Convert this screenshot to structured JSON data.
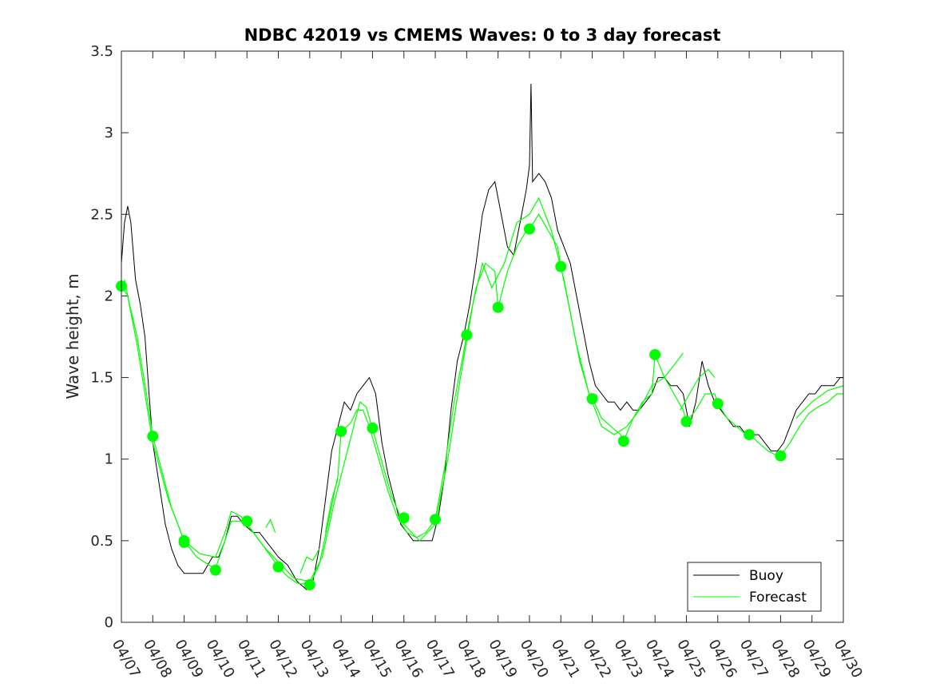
{
  "chart_data": {
    "type": "line",
    "title": "NDBC 42019 vs CMEMS Waves: 0 to 3 day forecast",
    "xlabel": "",
    "ylabel": "Wave height, m",
    "x_ticks": [
      "04/07",
      "04/08",
      "04/09",
      "04/10",
      "04/11",
      "04/12",
      "04/13",
      "04/14",
      "04/15",
      "04/16",
      "04/17",
      "04/18",
      "04/19",
      "04/20",
      "04/21",
      "04/22",
      "04/23",
      "04/24",
      "04/25",
      "04/26",
      "04/27",
      "04/28",
      "04/29",
      "04/30"
    ],
    "y_ticks": [
      "0",
      "0.5",
      "1",
      "1.5",
      "2",
      "2.5",
      "3",
      "3.5"
    ],
    "ylim": [
      0,
      3.5
    ],
    "grid": false,
    "legend_position": "bottom-right",
    "legend": [
      "Buoy",
      "Forecast"
    ],
    "colors": {
      "buoy": "#000000",
      "forecast": "#00ff00"
    },
    "series": [
      {
        "name": "Buoy",
        "color": "#000000",
        "points": [
          [
            0,
            2.2
          ],
          [
            0.1,
            2.45
          ],
          [
            0.2,
            2.55
          ],
          [
            0.3,
            2.45
          ],
          [
            0.45,
            2.1
          ],
          [
            0.6,
            1.95
          ],
          [
            0.75,
            1.75
          ],
          [
            0.9,
            1.35
          ],
          [
            1.0,
            1.1
          ],
          [
            1.2,
            0.85
          ],
          [
            1.4,
            0.6
          ],
          [
            1.6,
            0.45
          ],
          [
            1.8,
            0.35
          ],
          [
            2.0,
            0.3
          ],
          [
            2.3,
            0.3
          ],
          [
            2.6,
            0.3
          ],
          [
            2.9,
            0.4
          ],
          [
            3.1,
            0.4
          ],
          [
            3.3,
            0.5
          ],
          [
            3.5,
            0.65
          ],
          [
            3.7,
            0.65
          ],
          [
            3.9,
            0.6
          ],
          [
            4.2,
            0.55
          ],
          [
            4.4,
            0.55
          ],
          [
            4.6,
            0.5
          ],
          [
            4.8,
            0.45
          ],
          [
            5.0,
            0.4
          ],
          [
            5.3,
            0.35
          ],
          [
            5.6,
            0.25
          ],
          [
            5.9,
            0.2
          ],
          [
            6.1,
            0.25
          ],
          [
            6.3,
            0.45
          ],
          [
            6.5,
            0.75
          ],
          [
            6.7,
            1.05
          ],
          [
            6.9,
            1.2
          ],
          [
            7.1,
            1.35
          ],
          [
            7.3,
            1.3
          ],
          [
            7.5,
            1.4
          ],
          [
            7.7,
            1.45
          ],
          [
            7.9,
            1.5
          ],
          [
            8.1,
            1.4
          ],
          [
            8.3,
            1.1
          ],
          [
            8.5,
            0.9
          ],
          [
            8.7,
            0.75
          ],
          [
            8.9,
            0.6
          ],
          [
            9.1,
            0.55
          ],
          [
            9.3,
            0.5
          ],
          [
            9.6,
            0.5
          ],
          [
            9.9,
            0.5
          ],
          [
            10.1,
            0.65
          ],
          [
            10.3,
            0.9
          ],
          [
            10.5,
            1.3
          ],
          [
            10.7,
            1.6
          ],
          [
            10.9,
            1.75
          ],
          [
            11.1,
            1.95
          ],
          [
            11.3,
            2.2
          ],
          [
            11.5,
            2.5
          ],
          [
            11.7,
            2.65
          ],
          [
            11.9,
            2.7
          ],
          [
            12.1,
            2.5
          ],
          [
            12.3,
            2.3
          ],
          [
            12.5,
            2.25
          ],
          [
            12.7,
            2.45
          ],
          [
            12.9,
            2.65
          ],
          [
            13.0,
            2.8
          ],
          [
            13.05,
            3.3
          ],
          [
            13.1,
            2.7
          ],
          [
            13.3,
            2.75
          ],
          [
            13.5,
            2.7
          ],
          [
            13.7,
            2.6
          ],
          [
            13.9,
            2.4
          ],
          [
            14.1,
            2.3
          ],
          [
            14.3,
            2.2
          ],
          [
            14.5,
            2.0
          ],
          [
            14.7,
            1.8
          ],
          [
            14.9,
            1.6
          ],
          [
            15.1,
            1.45
          ],
          [
            15.3,
            1.4
          ],
          [
            15.5,
            1.35
          ],
          [
            15.7,
            1.35
          ],
          [
            15.9,
            1.3
          ],
          [
            16.1,
            1.35
          ],
          [
            16.3,
            1.3
          ],
          [
            16.5,
            1.3
          ],
          [
            16.7,
            1.35
          ],
          [
            16.9,
            1.4
          ],
          [
            17.1,
            1.5
          ],
          [
            17.3,
            1.5
          ],
          [
            17.5,
            1.45
          ],
          [
            17.7,
            1.45
          ],
          [
            17.9,
            1.4
          ],
          [
            18.1,
            1.2
          ],
          [
            18.3,
            1.35
          ],
          [
            18.5,
            1.6
          ],
          [
            18.7,
            1.45
          ],
          [
            18.9,
            1.35
          ],
          [
            19.1,
            1.3
          ],
          [
            19.3,
            1.25
          ],
          [
            19.5,
            1.2
          ],
          [
            19.7,
            1.2
          ],
          [
            19.9,
            1.15
          ],
          [
            20.1,
            1.15
          ],
          [
            20.3,
            1.15
          ],
          [
            20.5,
            1.1
          ],
          [
            20.7,
            1.05
          ],
          [
            20.9,
            1.05
          ],
          [
            21.1,
            1.1
          ],
          [
            21.3,
            1.2
          ],
          [
            21.5,
            1.3
          ],
          [
            21.7,
            1.35
          ],
          [
            21.9,
            1.4
          ],
          [
            22.1,
            1.4
          ],
          [
            22.3,
            1.45
          ],
          [
            22.5,
            1.45
          ],
          [
            22.7,
            1.45
          ],
          [
            22.9,
            1.5
          ],
          [
            23.0,
            1.5
          ]
        ]
      },
      {
        "name": "Forecast",
        "color": "#00ff00",
        "segments": [
          [
            [
              0,
              2.06
            ],
            [
              0.2,
              2.0
            ],
            [
              0.5,
              1.75
            ],
            [
              0.8,
              1.4
            ],
            [
              1.0,
              1.14
            ],
            [
              1.3,
              0.92
            ],
            [
              1.6,
              0.7
            ],
            [
              2.0,
              0.5
            ],
            [
              2.4,
              0.4
            ],
            [
              2.8,
              0.35
            ],
            [
              3.0,
              0.33
            ],
            [
              3.3,
              0.5
            ],
            [
              3.5,
              0.62
            ],
            [
              3.8,
              0.62
            ],
            [
              4.1,
              0.58
            ],
            [
              4.4,
              0.5
            ],
            [
              4.7,
              0.42
            ],
            [
              5.0,
              0.34
            ],
            [
              5.3,
              0.28
            ],
            [
              5.6,
              0.24
            ],
            [
              6.0,
              0.23
            ],
            [
              6.3,
              0.35
            ],
            [
              6.6,
              0.62
            ],
            [
              6.9,
              0.9
            ],
            [
              7.0,
              1.17
            ],
            [
              7.3,
              1.22
            ],
            [
              7.5,
              1.3
            ],
            [
              7.7,
              1.3
            ],
            [
              7.9,
              1.2
            ],
            [
              8.2,
              1.0
            ],
            [
              8.5,
              0.8
            ],
            [
              8.8,
              0.64
            ],
            [
              9.1,
              0.55
            ],
            [
              9.4,
              0.52
            ],
            [
              9.7,
              0.55
            ],
            [
              10.0,
              0.63
            ],
            [
              10.3,
              0.95
            ],
            [
              10.6,
              1.35
            ],
            [
              10.9,
              1.65
            ],
            [
              11.0,
              1.76
            ],
            [
              11.3,
              2.05
            ],
            [
              11.6,
              2.2
            ],
            [
              11.9,
              2.15
            ],
            [
              12.0,
              1.93
            ],
            [
              12.3,
              2.15
            ],
            [
              12.6,
              2.3
            ],
            [
              12.9,
              2.4
            ],
            [
              13.0,
              2.41
            ],
            [
              13.3,
              2.5
            ],
            [
              13.6,
              2.4
            ],
            [
              13.9,
              2.3
            ],
            [
              14.0,
              2.18
            ],
            [
              14.3,
              1.9
            ],
            [
              14.6,
              1.6
            ],
            [
              14.9,
              1.4
            ],
            [
              15.0,
              1.37
            ],
            [
              15.3,
              1.25
            ],
            [
              15.6,
              1.2
            ],
            [
              15.9,
              1.15
            ],
            [
              16.0,
              1.11
            ],
            [
              16.3,
              1.25
            ],
            [
              16.6,
              1.35
            ],
            [
              16.9,
              1.4
            ],
            [
              17.0,
              1.64
            ],
            [
              17.3,
              1.5
            ],
            [
              17.6,
              1.4
            ],
            [
              17.9,
              1.3
            ],
            [
              18.0,
              1.23
            ],
            [
              18.3,
              1.3
            ],
            [
              18.6,
              1.4
            ],
            [
              18.9,
              1.4
            ],
            [
              19.0,
              1.34
            ],
            [
              19.3,
              1.25
            ],
            [
              19.6,
              1.2
            ],
            [
              19.9,
              1.15
            ],
            [
              20.0,
              1.15
            ],
            [
              20.3,
              1.1
            ],
            [
              20.6,
              1.05
            ],
            [
              20.9,
              1.02
            ],
            [
              21.0,
              1.02
            ],
            [
              21.3,
              1.1
            ],
            [
              21.6,
              1.2
            ],
            [
              21.9,
              1.28
            ],
            [
              22.2,
              1.32
            ],
            [
              22.5,
              1.35
            ],
            [
              22.8,
              1.4
            ],
            [
              23.0,
              1.4
            ]
          ],
          [
            [
              0.1,
              2.1
            ],
            [
              0.5,
              1.7
            ],
            [
              1.0,
              1.1
            ],
            [
              1.5,
              0.75
            ],
            [
              2.0,
              0.5
            ],
            [
              2.5,
              0.42
            ],
            [
              3.0,
              0.4
            ],
            [
              3.3,
              0.55
            ],
            [
              3.5,
              0.68
            ],
            [
              3.8,
              0.65
            ],
            [
              4.2,
              0.55
            ],
            [
              4.6,
              0.45
            ],
            [
              5.0,
              0.37
            ],
            [
              5.5,
              0.27
            ],
            [
              6.0,
              0.25
            ],
            [
              6.4,
              0.4
            ],
            [
              6.8,
              0.75
            ],
            [
              7.2,
              1.05
            ],
            [
              7.6,
              1.35
            ],
            [
              7.8,
              1.32
            ],
            [
              8.2,
              1.05
            ],
            [
              8.6,
              0.78
            ],
            [
              9.0,
              0.6
            ],
            [
              9.5,
              0.5
            ],
            [
              10.0,
              0.6
            ],
            [
              10.4,
              1.0
            ],
            [
              10.8,
              1.5
            ],
            [
              11.2,
              1.95
            ],
            [
              11.5,
              2.2
            ],
            [
              11.8,
              2.05
            ],
            [
              12.2,
              2.2
            ],
            [
              12.6,
              2.45
            ],
            [
              13.0,
              2.5
            ],
            [
              13.3,
              2.6
            ],
            [
              13.7,
              2.4
            ],
            [
              14.1,
              2.1
            ],
            [
              14.5,
              1.7
            ],
            [
              14.9,
              1.4
            ],
            [
              15.3,
              1.2
            ],
            [
              15.7,
              1.15
            ],
            [
              16.1,
              1.2
            ],
            [
              16.5,
              1.3
            ],
            [
              16.9,
              1.45
            ],
            [
              17.3,
              1.5
            ],
            [
              17.7,
              1.6
            ],
            [
              17.9,
              1.65
            ]
          ],
          [
            [
              5.7,
              0.3
            ],
            [
              5.9,
              0.4
            ],
            [
              6.1,
              0.38
            ],
            [
              6.3,
              0.45
            ]
          ],
          [
            [
              6.5,
              0.55
            ],
            [
              6.7,
              0.75
            ],
            [
              6.9,
              0.88
            ]
          ],
          [
            [
              4.6,
              0.58
            ],
            [
              4.75,
              0.63
            ],
            [
              4.9,
              0.55
            ]
          ],
          [
            [
              17.8,
              1.3
            ],
            [
              18.1,
              1.4
            ],
            [
              18.4,
              1.5
            ],
            [
              18.7,
              1.55
            ],
            [
              18.9,
              1.5
            ]
          ],
          [
            [
              21.5,
              1.25
            ],
            [
              22.0,
              1.35
            ],
            [
              22.5,
              1.42
            ],
            [
              23.0,
              1.45
            ]
          ]
        ],
        "markers": [
          [
            0,
            2.06
          ],
          [
            1.0,
            1.14
          ],
          [
            2.0,
            0.5
          ],
          [
            2.0,
            0.49
          ],
          [
            3.0,
            0.32
          ],
          [
            4.0,
            0.62
          ],
          [
            5.0,
            0.34
          ],
          [
            6.0,
            0.23
          ],
          [
            7.0,
            1.17
          ],
          [
            8.0,
            1.19
          ],
          [
            9.0,
            0.64
          ],
          [
            10.0,
            0.63
          ],
          [
            11.0,
            1.76
          ],
          [
            12.0,
            1.93
          ],
          [
            13.0,
            2.41
          ],
          [
            14.0,
            2.18
          ],
          [
            15.0,
            1.37
          ],
          [
            16.0,
            1.11
          ],
          [
            17.0,
            1.64
          ],
          [
            18.0,
            1.23
          ],
          [
            19.0,
            1.34
          ],
          [
            20.0,
            1.15
          ],
          [
            21.0,
            1.02
          ]
        ]
      }
    ]
  }
}
